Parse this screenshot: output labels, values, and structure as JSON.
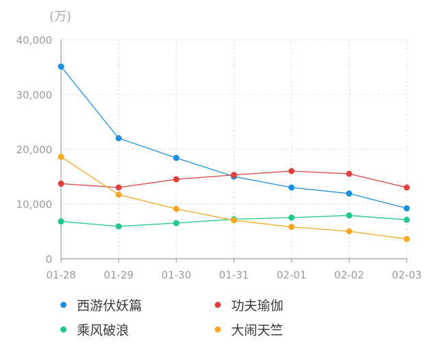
{
  "chart_data": {
    "type": "line",
    "unit_label": "(万)",
    "categories": [
      "01-28",
      "01-29",
      "01-30",
      "01-31",
      "02-01",
      "02-02",
      "02-03"
    ],
    "y_ticks": [
      "40,000",
      "30,000",
      "20,000",
      "10,000",
      "0"
    ],
    "ylim": [
      0,
      40000
    ],
    "grid": true,
    "legend_position": "bottom",
    "series": [
      {
        "name": "西游伏妖篇",
        "color": "#1a8fe0",
        "values": [
          35100,
          22000,
          18400,
          15000,
          13000,
          11900,
          9200
        ]
      },
      {
        "name": "功夫瑜伽",
        "color": "#e04040",
        "values": [
          13700,
          13000,
          14500,
          15300,
          16000,
          15500,
          13000
        ]
      },
      {
        "name": "乘风破浪",
        "color": "#20c88a",
        "values": [
          6800,
          5900,
          6500,
          7200,
          7500,
          7900,
          7100
        ]
      },
      {
        "name": "大闹天竺",
        "color": "#f5a820",
        "values": [
          18600,
          11700,
          9100,
          7000,
          5800,
          5000,
          3600
        ]
      }
    ]
  },
  "colors": {
    "axis": "#9aa0a6",
    "grid": "#dcdcdc",
    "text": "#9a9a9a"
  }
}
